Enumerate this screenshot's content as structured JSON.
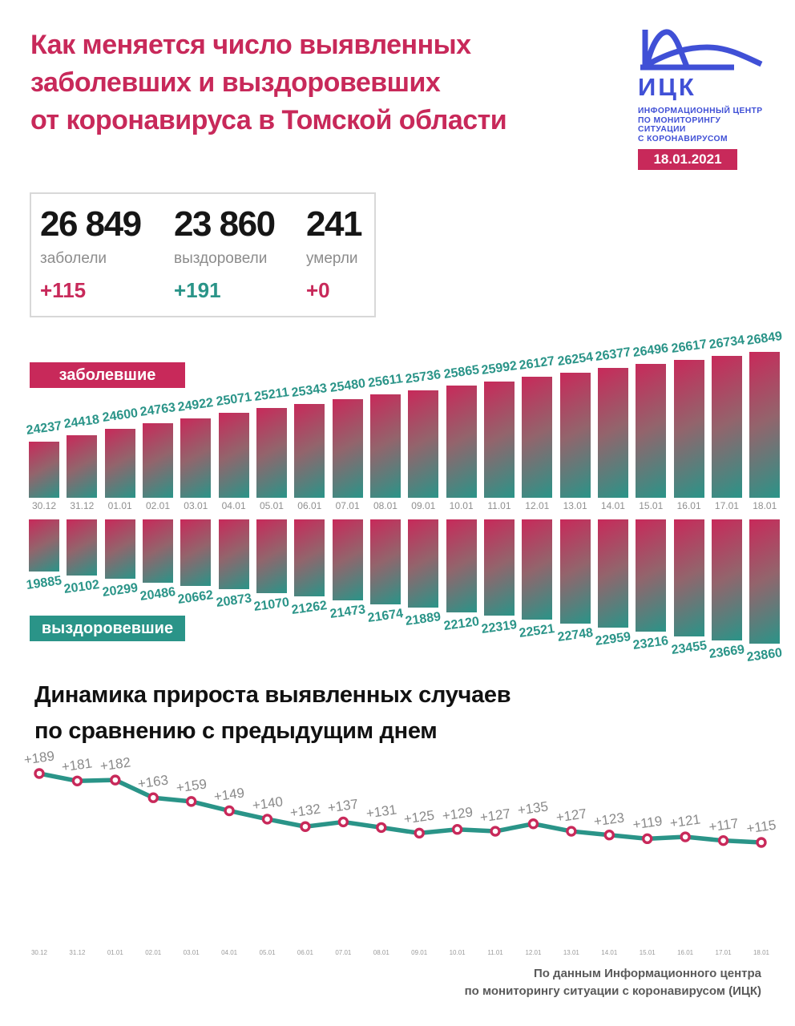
{
  "colors": {
    "crimson": "#c8295a",
    "teal": "#2a9488",
    "blue": "#4050d6",
    "bar_gradient": [
      "#c8295a",
      "#2a9488"
    ],
    "gray_label": "#8c8c8c"
  },
  "header": {
    "title_lines": [
      "Как меняется число выявленных",
      "заболевших и выздоровевших",
      "от коронавируса в Томской области"
    ],
    "logo": {
      "abbr": "ИЦК",
      "subtitle_lines": [
        "ИНФОРМАЦИОННЫЙ ЦЕНТР",
        "ПО МОНИТОРИНГУ СИТУАЦИИ",
        "С КОРОНАВИРУСОМ"
      ],
      "date": "18.01.2021"
    }
  },
  "summary": {
    "cards": [
      {
        "value": "26 849",
        "label": "заболели",
        "delta": "+115",
        "delta_color": "#c8295a"
      },
      {
        "value": "23 860",
        "label": "выздоровели",
        "delta": "+191",
        "delta_color": "#2a9488"
      },
      {
        "value": "241",
        "label": "умерли",
        "delta": "+0",
        "delta_color": "#c8295a"
      }
    ]
  },
  "chart_data": [
    {
      "type": "bar",
      "legend": "заболевшие",
      "legend_position": "top-left",
      "orientation": "up",
      "categories": [
        "30.12",
        "31.12",
        "01.01",
        "02.01",
        "03.01",
        "04.01",
        "05.01",
        "06.01",
        "07.01",
        "08.01",
        "09.01",
        "10.01",
        "11.01",
        "12.01",
        "13.01",
        "14.01",
        "15.01",
        "16.01",
        "17.01",
        "18.01"
      ],
      "values": [
        24237,
        24418,
        24600,
        24763,
        24922,
        25071,
        25211,
        25343,
        25480,
        25611,
        25736,
        25865,
        25992,
        26127,
        26254,
        26377,
        26496,
        26617,
        26734,
        26849
      ]
    },
    {
      "type": "bar",
      "legend": "выздоровевшие",
      "legend_position": "bottom-left",
      "orientation": "down",
      "categories": [
        "30.12",
        "31.12",
        "01.01",
        "02.01",
        "03.01",
        "04.01",
        "05.01",
        "06.01",
        "07.01",
        "08.01",
        "09.01",
        "10.01",
        "11.01",
        "12.01",
        "13.01",
        "14.01",
        "15.01",
        "16.01",
        "17.01",
        "18.01"
      ],
      "values": [
        19885,
        20102,
        20299,
        20486,
        20662,
        20873,
        21070,
        21262,
        21473,
        21674,
        21889,
        22120,
        22319,
        22521,
        22748,
        22959,
        23216,
        23455,
        23669,
        23860
      ]
    },
    {
      "type": "line",
      "title": "Динамика прироста выявленных случаев по сравнению с предыдущим днем",
      "title_lines": [
        "Динамика прироста выявленных случаев",
        "по сравнению с предыдущим днем"
      ],
      "x": [
        "30.12",
        "31.12",
        "01.01",
        "02.01",
        "03.01",
        "04.01",
        "05.01",
        "06.01",
        "07.01",
        "08.01",
        "09.01",
        "10.01",
        "11.01",
        "12.01",
        "13.01",
        "14.01",
        "15.01",
        "16.01",
        "17.01",
        "18.01"
      ],
      "values": [
        189,
        181,
        182,
        163,
        159,
        149,
        140,
        132,
        137,
        131,
        125,
        129,
        127,
        135,
        127,
        123,
        119,
        121,
        117,
        115
      ],
      "labels": [
        "+189",
        "+181",
        "+182",
        "+163",
        "+159",
        "+149",
        "+140",
        "+132",
        "+137",
        "+131",
        "+125",
        "+129",
        "+127",
        "+135",
        "+127",
        "+123",
        "+119",
        "+121",
        "+117",
        "+115"
      ],
      "grid": false,
      "legend_position": "none"
    }
  ],
  "footer": {
    "lines": [
      "По данным Информационного центра",
      "по мониторингу ситуации с коронавирусом (ИЦК)"
    ]
  }
}
